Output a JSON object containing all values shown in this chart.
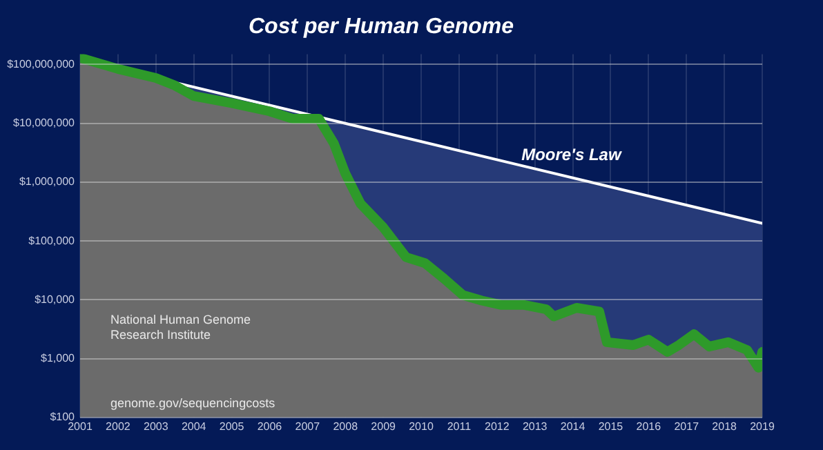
{
  "chart_data": {
    "type": "area",
    "title": "Cost per Human Genome",
    "xlim": [
      2001,
      2019
    ],
    "xticks": [
      2001,
      2002,
      2003,
      2004,
      2005,
      2006,
      2007,
      2008,
      2009,
      2010,
      2011,
      2012,
      2013,
      2014,
      2015,
      2016,
      2017,
      2018,
      2019
    ],
    "ylim": [
      100,
      150000000
    ],
    "log": "y",
    "yticks": [
      {
        "value": 100,
        "label": "$100"
      },
      {
        "value": 1000,
        "label": "$1,000"
      },
      {
        "value": 10000,
        "label": "$10,000"
      },
      {
        "value": 100000,
        "label": "$100,000"
      },
      {
        "value": 1000000,
        "label": "$1,000,000"
      },
      {
        "value": 10000000,
        "label": "$10,000,000"
      },
      {
        "value": 100000000,
        "label": "$100,000,000"
      }
    ],
    "grid": true,
    "legend": false,
    "marker": "none",
    "series": [
      {
        "color": "#2e9a2a",
        "x": [
          2001,
          2002,
          2003,
          2003.5,
          2004,
          2005,
          2006,
          2006.6,
          2007.3,
          2007.7,
          2008,
          2008.4,
          2009,
          2009.6,
          2010.1,
          2010.6,
          2011.1,
          2011.6,
          2012.1,
          2012.7,
          2013.3,
          2013.5,
          2014.1,
          2014.7,
          2014.9,
          2015.6,
          2016,
          2016.5,
          2016.8,
          2017.2,
          2017.6,
          2018.1,
          2018.6,
          2018.9,
          2019
        ],
        "values": [
          130000000,
          84000000,
          59000000,
          44000000,
          29000000,
          22000000,
          16000000,
          12000000,
          12000000,
          4500000,
          1400000,
          430000,
          170000,
          53000,
          42000,
          23000,
          12000,
          9700,
          8200,
          8200,
          6900,
          5200,
          7300,
          6300,
          1900,
          1700,
          2100,
          1300,
          1700,
          2600,
          1600,
          1900,
          1400,
          700,
          1300
        ]
      },
      {
        "type": "area",
        "name": "Moore's Law",
        "color": "#ffffff",
        "x": [
          2001,
          2019
        ],
        "values": [
          120000000,
          200000
        ]
      }
    ],
    "annotations": [
      "National Human Genome Research Institute",
      "genome.gov/sequencingcosts"
    ]
  }
}
